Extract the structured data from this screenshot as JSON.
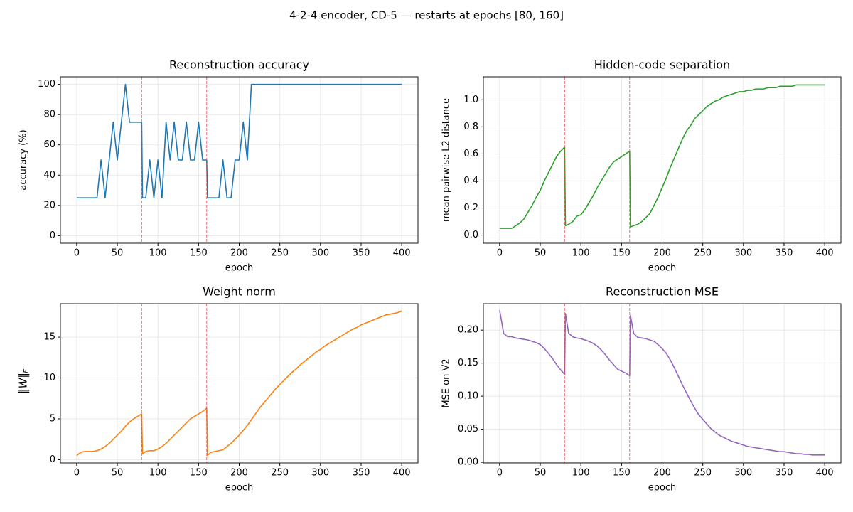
{
  "title": "4-2-4 encoder, CD-5 — restarts at epochs [80, 160]",
  "chart_data": [
    {
      "type": "line",
      "title": "Reconstruction accuracy",
      "xlabel": "epoch",
      "ylabel": "accuracy (%)",
      "x": [
        0,
        5,
        10,
        15,
        20,
        25,
        30,
        35,
        40,
        45,
        50,
        55,
        60,
        65,
        70,
        75,
        80,
        81,
        85,
        90,
        95,
        100,
        105,
        110,
        115,
        120,
        125,
        130,
        135,
        140,
        145,
        150,
        155,
        160,
        161,
        165,
        170,
        175,
        180,
        185,
        190,
        195,
        200,
        205,
        210,
        215,
        220,
        225,
        230,
        235,
        240,
        245,
        250,
        255,
        260,
        265,
        270,
        275,
        280,
        285,
        290,
        295,
        300,
        305,
        310,
        315,
        320,
        325,
        330,
        335,
        340,
        345,
        350,
        355,
        360,
        365,
        370,
        375,
        380,
        385,
        390,
        395,
        400
      ],
      "series": [
        {
          "color": "#1f77b4",
          "values": [
            25,
            25,
            25,
            25,
            25,
            25,
            50,
            25,
            50,
            75,
            50,
            75,
            100,
            75,
            75,
            75,
            75,
            25,
            25,
            50,
            25,
            50,
            25,
            75,
            50,
            75,
            50,
            50,
            75,
            50,
            50,
            75,
            50,
            50,
            25,
            25,
            25,
            25,
            50,
            25,
            25,
            50,
            50,
            75,
            50,
            100,
            100,
            100,
            100,
            100,
            100,
            100,
            100,
            100,
            100,
            100,
            100,
            100,
            100,
            100,
            100,
            100,
            100,
            100,
            100,
            100,
            100,
            100,
            100,
            100,
            100,
            100,
            100,
            100,
            100,
            100,
            100,
            100,
            100,
            100,
            100,
            100,
            100
          ]
        }
      ],
      "xlim": [
        -20,
        420
      ],
      "xticks": [
        0,
        50,
        100,
        150,
        200,
        250,
        300,
        350,
        400
      ],
      "ylim": [
        -5,
        105
      ],
      "yticks": [
        0,
        20,
        40,
        60,
        80,
        100
      ],
      "vlines": [
        80,
        160
      ],
      "vline_color": "#e8474a",
      "grid": true
    },
    {
      "type": "line",
      "title": "Hidden-code separation",
      "xlabel": "epoch",
      "ylabel": "mean pairwise L2 distance",
      "x": [
        0,
        5,
        10,
        15,
        20,
        25,
        30,
        35,
        40,
        45,
        50,
        55,
        60,
        65,
        70,
        75,
        80,
        81,
        85,
        90,
        95,
        100,
        105,
        110,
        115,
        120,
        125,
        130,
        135,
        140,
        145,
        150,
        155,
        160,
        161,
        165,
        170,
        175,
        180,
        185,
        190,
        195,
        200,
        205,
        210,
        215,
        220,
        225,
        230,
        235,
        240,
        245,
        250,
        255,
        260,
        265,
        270,
        275,
        280,
        285,
        290,
        295,
        300,
        305,
        310,
        315,
        320,
        325,
        330,
        335,
        340,
        345,
        350,
        355,
        360,
        365,
        370,
        375,
        380,
        385,
        390,
        395,
        400
      ],
      "series": [
        {
          "color": "#2ca02c",
          "values": [
            0.05,
            0.05,
            0.05,
            0.05,
            0.07,
            0.09,
            0.12,
            0.17,
            0.22,
            0.28,
            0.33,
            0.4,
            0.46,
            0.52,
            0.58,
            0.62,
            0.65,
            0.07,
            0.08,
            0.1,
            0.14,
            0.15,
            0.19,
            0.24,
            0.29,
            0.35,
            0.4,
            0.45,
            0.5,
            0.54,
            0.56,
            0.58,
            0.6,
            0.62,
            0.06,
            0.07,
            0.08,
            0.1,
            0.13,
            0.16,
            0.22,
            0.28,
            0.35,
            0.42,
            0.5,
            0.57,
            0.64,
            0.71,
            0.77,
            0.81,
            0.86,
            0.89,
            0.92,
            0.95,
            0.97,
            0.99,
            1.0,
            1.02,
            1.03,
            1.04,
            1.05,
            1.06,
            1.06,
            1.07,
            1.07,
            1.08,
            1.08,
            1.08,
            1.09,
            1.09,
            1.09,
            1.1,
            1.1,
            1.1,
            1.1,
            1.11,
            1.11,
            1.11,
            1.11,
            1.11,
            1.11,
            1.11,
            1.11
          ]
        }
      ],
      "xlim": [
        -20,
        420
      ],
      "xticks": [
        0,
        50,
        100,
        150,
        200,
        250,
        300,
        350,
        400
      ],
      "ylim": [
        -0.06,
        1.17
      ],
      "yticks": [
        {
          "value": 0,
          "label": "0.0"
        },
        0.2,
        0.4,
        0.6,
        0.8,
        {
          "value": 1,
          "label": "1.0"
        }
      ],
      "vlines": [
        80,
        160
      ],
      "vline_color": "#e8474a",
      "grid": true
    },
    {
      "type": "line",
      "title": "Weight norm",
      "xlabel": "epoch",
      "ylabel": "‖W‖",
      "ylabel_sub": "F",
      "x": [
        0,
        5,
        10,
        15,
        20,
        25,
        30,
        35,
        40,
        45,
        50,
        55,
        60,
        65,
        70,
        75,
        80,
        81,
        85,
        90,
        95,
        100,
        105,
        110,
        115,
        120,
        125,
        130,
        135,
        140,
        145,
        150,
        155,
        160,
        161,
        165,
        170,
        175,
        180,
        185,
        190,
        195,
        200,
        205,
        210,
        215,
        220,
        225,
        230,
        235,
        240,
        245,
        250,
        255,
        260,
        265,
        270,
        275,
        280,
        285,
        290,
        295,
        300,
        305,
        310,
        315,
        320,
        325,
        330,
        335,
        340,
        345,
        350,
        355,
        360,
        365,
        370,
        375,
        380,
        385,
        390,
        395,
        400
      ],
      "series": [
        {
          "color": "#ff7f0e",
          "values": [
            0.5,
            0.9,
            1.0,
            1.0,
            1.0,
            1.1,
            1.3,
            1.6,
            2.0,
            2.5,
            3.0,
            3.5,
            4.1,
            4.6,
            5.0,
            5.3,
            5.6,
            0.7,
            1.0,
            1.1,
            1.1,
            1.3,
            1.6,
            2.0,
            2.5,
            3.0,
            3.5,
            4.0,
            4.5,
            5.0,
            5.3,
            5.6,
            5.9,
            6.3,
            0.5,
            0.9,
            1.0,
            1.1,
            1.2,
            1.6,
            2.0,
            2.5,
            3.0,
            3.6,
            4.2,
            4.9,
            5.6,
            6.3,
            6.9,
            7.5,
            8.1,
            8.7,
            9.2,
            9.7,
            10.2,
            10.7,
            11.1,
            11.6,
            12.0,
            12.4,
            12.8,
            13.2,
            13.5,
            13.9,
            14.2,
            14.5,
            14.8,
            15.1,
            15.4,
            15.7,
            16.0,
            16.2,
            16.5,
            16.7,
            16.9,
            17.1,
            17.3,
            17.5,
            17.7,
            17.8,
            17.9,
            18.0,
            18.2
          ]
        }
      ],
      "xlim": [
        -20,
        420
      ],
      "xticks": [
        0,
        50,
        100,
        150,
        200,
        250,
        300,
        350,
        400
      ],
      "ylim": [
        -0.4,
        19.1
      ],
      "yticks": [
        0,
        5,
        10,
        15
      ],
      "vlines": [
        80,
        160
      ],
      "vline_color": "#e8474a",
      "grid": true
    },
    {
      "type": "line",
      "title": "Reconstruction MSE",
      "xlabel": "epoch",
      "ylabel": "MSE on V2",
      "x": [
        0,
        5,
        10,
        15,
        20,
        25,
        30,
        35,
        40,
        45,
        50,
        55,
        60,
        65,
        70,
        75,
        80,
        81,
        85,
        90,
        95,
        100,
        105,
        110,
        115,
        120,
        125,
        130,
        135,
        140,
        145,
        150,
        155,
        160,
        161,
        165,
        170,
        175,
        180,
        185,
        190,
        195,
        200,
        205,
        210,
        215,
        220,
        225,
        230,
        235,
        240,
        245,
        250,
        255,
        260,
        265,
        270,
        275,
        280,
        285,
        290,
        295,
        300,
        305,
        310,
        315,
        320,
        325,
        330,
        335,
        340,
        345,
        350,
        355,
        360,
        365,
        370,
        375,
        380,
        385,
        390,
        395,
        400
      ],
      "series": [
        {
          "color": "#9467bd",
          "values": [
            0.23,
            0.195,
            0.19,
            0.19,
            0.188,
            0.187,
            0.186,
            0.185,
            0.183,
            0.181,
            0.178,
            0.172,
            0.165,
            0.157,
            0.148,
            0.14,
            0.133,
            0.225,
            0.195,
            0.19,
            0.188,
            0.187,
            0.185,
            0.183,
            0.18,
            0.176,
            0.17,
            0.163,
            0.155,
            0.148,
            0.141,
            0.138,
            0.135,
            0.131,
            0.222,
            0.195,
            0.189,
            0.188,
            0.187,
            0.185,
            0.183,
            0.178,
            0.172,
            0.165,
            0.155,
            0.143,
            0.13,
            0.117,
            0.105,
            0.093,
            0.082,
            0.072,
            0.065,
            0.058,
            0.051,
            0.046,
            0.041,
            0.038,
            0.035,
            0.032,
            0.03,
            0.028,
            0.026,
            0.024,
            0.023,
            0.022,
            0.021,
            0.02,
            0.019,
            0.018,
            0.017,
            0.016,
            0.016,
            0.015,
            0.014,
            0.013,
            0.013,
            0.012,
            0.012,
            0.011,
            0.011,
            0.011,
            0.011
          ]
        }
      ],
      "xlim": [
        -20,
        420
      ],
      "xticks": [
        0,
        50,
        100,
        150,
        200,
        250,
        300,
        350,
        400
      ],
      "ylim": [
        -0.001,
        0.24
      ],
      "yticks": [
        {
          "value": 0,
          "label": "0.00"
        },
        {
          "value": 0.05,
          "label": "0.05"
        },
        {
          "value": 0.1,
          "label": "0.10"
        },
        {
          "value": 0.15,
          "label": "0.15"
        },
        {
          "value": 0.2,
          "label": "0.20"
        }
      ],
      "vlines": [
        80,
        160
      ],
      "vline_color": "#e8474a",
      "grid": true
    }
  ]
}
